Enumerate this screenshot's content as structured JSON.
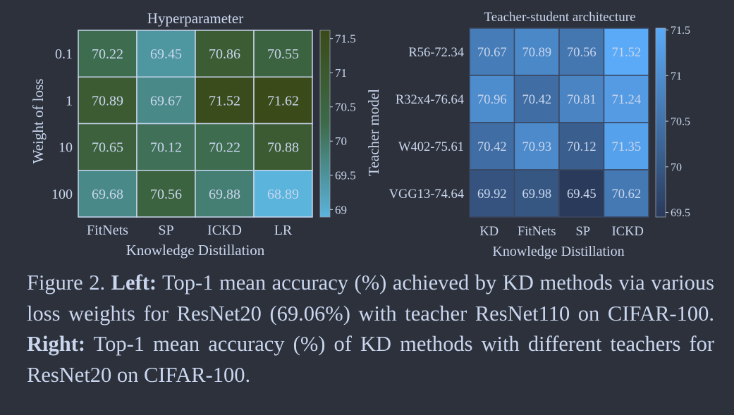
{
  "chart_data": [
    {
      "type": "heatmap",
      "title": "Hyperparameter",
      "xlabel": "Knowledge Distillation",
      "ylabel": "Weight of loss",
      "colorbar_label": "Teacher model",
      "x_categories": [
        "FitNets",
        "SP",
        "ICKD",
        "LR"
      ],
      "y_categories": [
        "0.1",
        "1",
        "10",
        "100"
      ],
      "values": [
        [
          70.22,
          69.45,
          70.86,
          70.55
        ],
        [
          70.89,
          69.67,
          71.52,
          71.62
        ],
        [
          70.65,
          70.12,
          70.22,
          70.88
        ],
        [
          69.68,
          70.56,
          69.88,
          68.89
        ]
      ],
      "value_labels": [
        [
          "70.22",
          "69.45",
          "70.86",
          "70.55"
        ],
        [
          "70.89",
          "69.67",
          "71.52",
          "71.62"
        ],
        [
          "70.65",
          "70.12",
          "70.22",
          "70.88"
        ],
        [
          "69.68",
          "70.56",
          "69.88",
          "68.89"
        ]
      ],
      "colorbar_range": [
        68.89,
        71.62
      ],
      "colorbar_ticks": [
        71.5,
        71,
        70.5,
        70,
        69.5,
        69
      ],
      "colorbar_tick_labels": [
        "71.5",
        "71",
        "70.5",
        "70",
        "69.5",
        "69"
      ],
      "colormap_low": "#5ab4dc",
      "colormap_mid": "#3d6a4a",
      "colormap_high": "#3a4a18"
    },
    {
      "type": "heatmap",
      "title": "Teacher-student architecture",
      "xlabel": "Knowledge Distillation",
      "ylabel": "",
      "x_categories": [
        "KD",
        "FitNets",
        "SP",
        "ICKD"
      ],
      "y_categories": [
        "R56-72.34",
        "R32x4-76.64",
        "W402-75.61",
        "VGG13-74.64"
      ],
      "values": [
        [
          70.67,
          70.89,
          70.56,
          71.52
        ],
        [
          70.96,
          70.42,
          70.81,
          71.24
        ],
        [
          70.42,
          70.93,
          70.12,
          71.35
        ],
        [
          69.92,
          69.98,
          69.45,
          70.62
        ]
      ],
      "value_labels": [
        [
          "70.67",
          "70.89",
          "70.56",
          "71.52"
        ],
        [
          "70.96",
          "70.42",
          "70.81",
          "71.24"
        ],
        [
          "70.42",
          "70.93",
          "70.12",
          "71.35"
        ],
        [
          "69.92",
          "69.98",
          "69.45",
          "70.62"
        ]
      ],
      "colorbar_range": [
        69.45,
        71.52
      ],
      "colorbar_ticks": [
        71.5,
        71,
        70.5,
        70,
        69.5
      ],
      "colorbar_tick_labels": [
        "71.5",
        "71",
        "70.5",
        "70",
        "69.5"
      ],
      "colormap_low": "#2a3a5a",
      "colormap_high": "#5aaaf8"
    }
  ],
  "caption": {
    "figure_label": "Figure 2.",
    "left_label": "Left:",
    "left_text": "Top-1 mean accuracy (%) achieved by KD methods via various loss weights for ResNet20 (69.06%) with teacher ResNet110 on CIFAR-100.",
    "right_label": "Right:",
    "right_text": "Top-1 mean accuracy (%) of KD methods with different teachers for ResNet20 on CIFAR-100."
  }
}
